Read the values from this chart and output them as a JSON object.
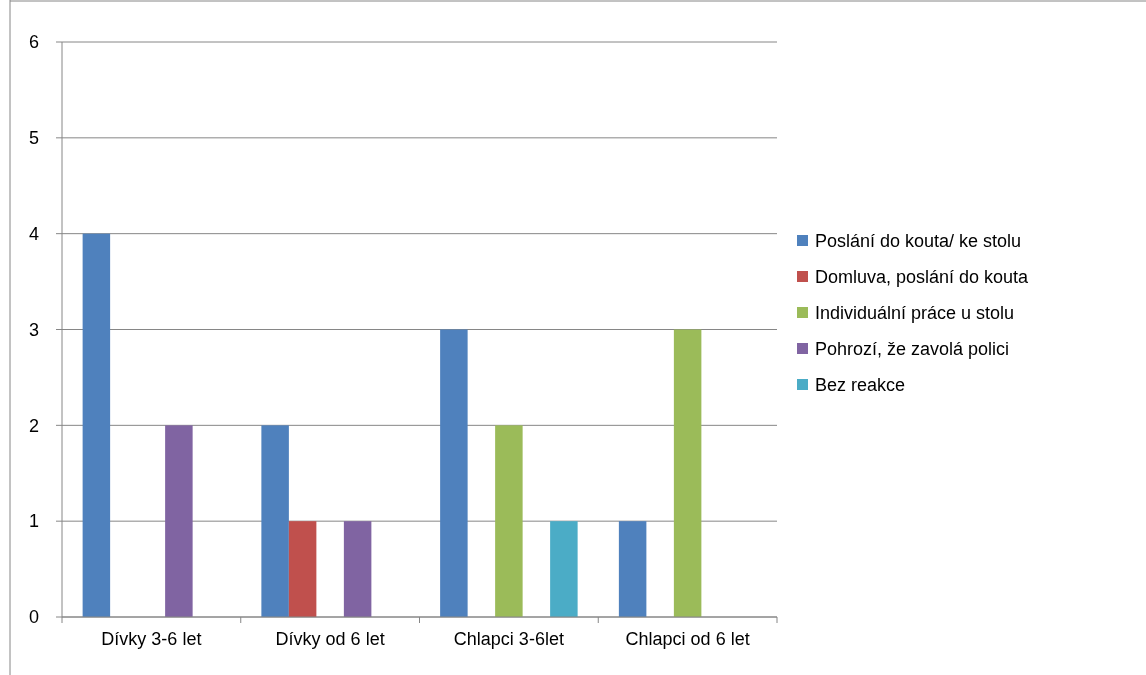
{
  "chart_data": {
    "type": "bar",
    "categories": [
      "Dívky 3-6 let",
      "Dívky od 6 let",
      "Chlapci 3-6let",
      "Chlapci od 6 let"
    ],
    "series": [
      {
        "name": "Poslání do kouta/ ke stolu",
        "color": "#4f81bd",
        "values": [
          4,
          2,
          3,
          1
        ]
      },
      {
        "name": "Domluva, poslání do kouta",
        "color": "#c0504d",
        "values": [
          0,
          1,
          0,
          0
        ]
      },
      {
        "name": "Individuální práce u stolu",
        "color": "#9bbb59",
        "values": [
          0,
          0,
          2,
          3
        ]
      },
      {
        "name": "Pohrozí, že zavolá polici",
        "color": "#8064a2",
        "values": [
          2,
          1,
          0,
          0
        ]
      },
      {
        "name": "Bez reakce",
        "color": "#4bacc6",
        "values": [
          0,
          0,
          1,
          0
        ]
      }
    ],
    "ylim": [
      0,
      6
    ],
    "yticks": [
      0,
      1,
      2,
      3,
      4,
      5,
      6
    ],
    "grid": "y",
    "legend": "right"
  }
}
